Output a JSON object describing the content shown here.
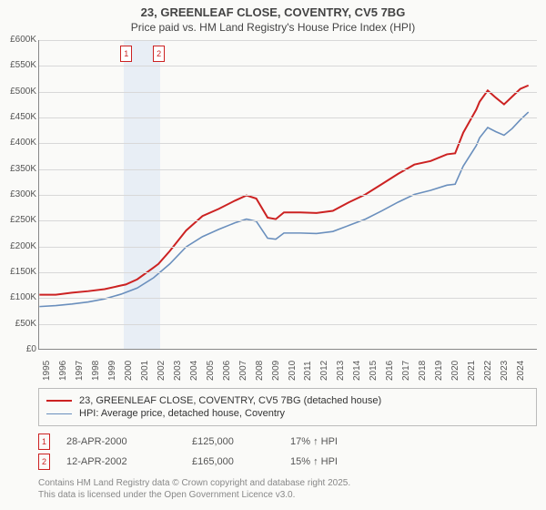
{
  "title_line1": "23, GREENLEAF CLOSE, COVENTRY, CV5 7BG",
  "title_line2": "Price paid vs. HM Land Registry's House Price Index (HPI)",
  "chart": {
    "type": "line",
    "x_start": 1995,
    "x_end": 2025.5,
    "x_ticks": [
      1995,
      1996,
      1997,
      1998,
      1999,
      2000,
      2001,
      2002,
      2003,
      2004,
      2005,
      2006,
      2007,
      2008,
      2009,
      2010,
      2011,
      2012,
      2013,
      2014,
      2015,
      2016,
      2017,
      2018,
      2019,
      2020,
      2021,
      2022,
      2023,
      2024
    ],
    "y_min": 0,
    "y_max": 600000,
    "y_step": 50000,
    "y_labels": [
      "£0",
      "£50K",
      "£100K",
      "£150K",
      "£200K",
      "£250K",
      "£300K",
      "£350K",
      "£400K",
      "£450K",
      "£500K",
      "£550K",
      "£600K"
    ],
    "band_x0": 2000.2,
    "band_x1": 2002.4,
    "grid_color": "#d8d8d8",
    "background_color": "#fafaf8",
    "series": [
      {
        "name": "price_paid",
        "label": "23, GREENLEAF CLOSE, COVENTRY, CV5 7BG (detached house)",
        "color": "#cc2222",
        "width": 2,
        "points": [
          [
            1995,
            105000
          ],
          [
            1996,
            105000
          ],
          [
            1997,
            109000
          ],
          [
            1998,
            112000
          ],
          [
            1999,
            116000
          ],
          [
            2000,
            123000
          ],
          [
            2000.3,
            125000
          ],
          [
            2001,
            135000
          ],
          [
            2002,
            158000
          ],
          [
            2002.3,
            165000
          ],
          [
            2003,
            190000
          ],
          [
            2004,
            230000
          ],
          [
            2005,
            258000
          ],
          [
            2006,
            272000
          ],
          [
            2007,
            288000
          ],
          [
            2007.7,
            298000
          ],
          [
            2008.3,
            292000
          ],
          [
            2009,
            255000
          ],
          [
            2009.5,
            252000
          ],
          [
            2010,
            265000
          ],
          [
            2011,
            265000
          ],
          [
            2012,
            264000
          ],
          [
            2013,
            268000
          ],
          [
            2014,
            285000
          ],
          [
            2015,
            300000
          ],
          [
            2016,
            320000
          ],
          [
            2017,
            340000
          ],
          [
            2018,
            358000
          ],
          [
            2019,
            365000
          ],
          [
            2020,
            378000
          ],
          [
            2020.5,
            380000
          ],
          [
            2021,
            420000
          ],
          [
            2021.8,
            465000
          ],
          [
            2022,
            480000
          ],
          [
            2022.5,
            502000
          ],
          [
            2023,
            488000
          ],
          [
            2023.5,
            475000
          ],
          [
            2024,
            490000
          ],
          [
            2024.5,
            505000
          ],
          [
            2025,
            512000
          ]
        ]
      },
      {
        "name": "hpi",
        "label": "HPI: Average price, detached house, Coventry",
        "color": "#6a8fbd",
        "width": 1.6,
        "points": [
          [
            1995,
            82000
          ],
          [
            1996,
            84000
          ],
          [
            1997,
            87000
          ],
          [
            1998,
            91000
          ],
          [
            1999,
            97000
          ],
          [
            2000,
            106000
          ],
          [
            2001,
            118000
          ],
          [
            2002,
            138000
          ],
          [
            2003,
            165000
          ],
          [
            2004,
            198000
          ],
          [
            2005,
            218000
          ],
          [
            2006,
            232000
          ],
          [
            2007,
            245000
          ],
          [
            2007.7,
            252000
          ],
          [
            2008.3,
            248000
          ],
          [
            2009,
            215000
          ],
          [
            2009.5,
            213000
          ],
          [
            2010,
            225000
          ],
          [
            2011,
            225000
          ],
          [
            2012,
            224000
          ],
          [
            2013,
            228000
          ],
          [
            2014,
            240000
          ],
          [
            2015,
            252000
          ],
          [
            2016,
            268000
          ],
          [
            2017,
            285000
          ],
          [
            2018,
            300000
          ],
          [
            2019,
            308000
          ],
          [
            2020,
            318000
          ],
          [
            2020.5,
            320000
          ],
          [
            2021,
            355000
          ],
          [
            2021.8,
            395000
          ],
          [
            2022,
            410000
          ],
          [
            2022.5,
            430000
          ],
          [
            2023,
            422000
          ],
          [
            2023.5,
            415000
          ],
          [
            2024,
            428000
          ],
          [
            2024.5,
            445000
          ],
          [
            2025,
            460000
          ]
        ]
      }
    ],
    "markers": [
      {
        "n": "1",
        "x": 2000.3,
        "y": 125000
      },
      {
        "n": "2",
        "x": 2002.3,
        "y": 165000
      }
    ]
  },
  "legend": {
    "items": [
      {
        "color": "#cc2222",
        "width": 2,
        "label": "23, GREENLEAF CLOSE, COVENTRY, CV5 7BG (detached house)"
      },
      {
        "color": "#6a8fbd",
        "width": 1.6,
        "label": "HPI: Average price, detached house, Coventry"
      }
    ]
  },
  "sales": [
    {
      "n": "1",
      "date": "28-APR-2000",
      "price": "£125,000",
      "delta": "17% ↑ HPI"
    },
    {
      "n": "2",
      "date": "12-APR-2002",
      "price": "£165,000",
      "delta": "15% ↑ HPI"
    }
  ],
  "footer_line1": "Contains HM Land Registry data © Crown copyright and database right 2025.",
  "footer_line2": "This data is licensed under the Open Government Licence v3.0."
}
